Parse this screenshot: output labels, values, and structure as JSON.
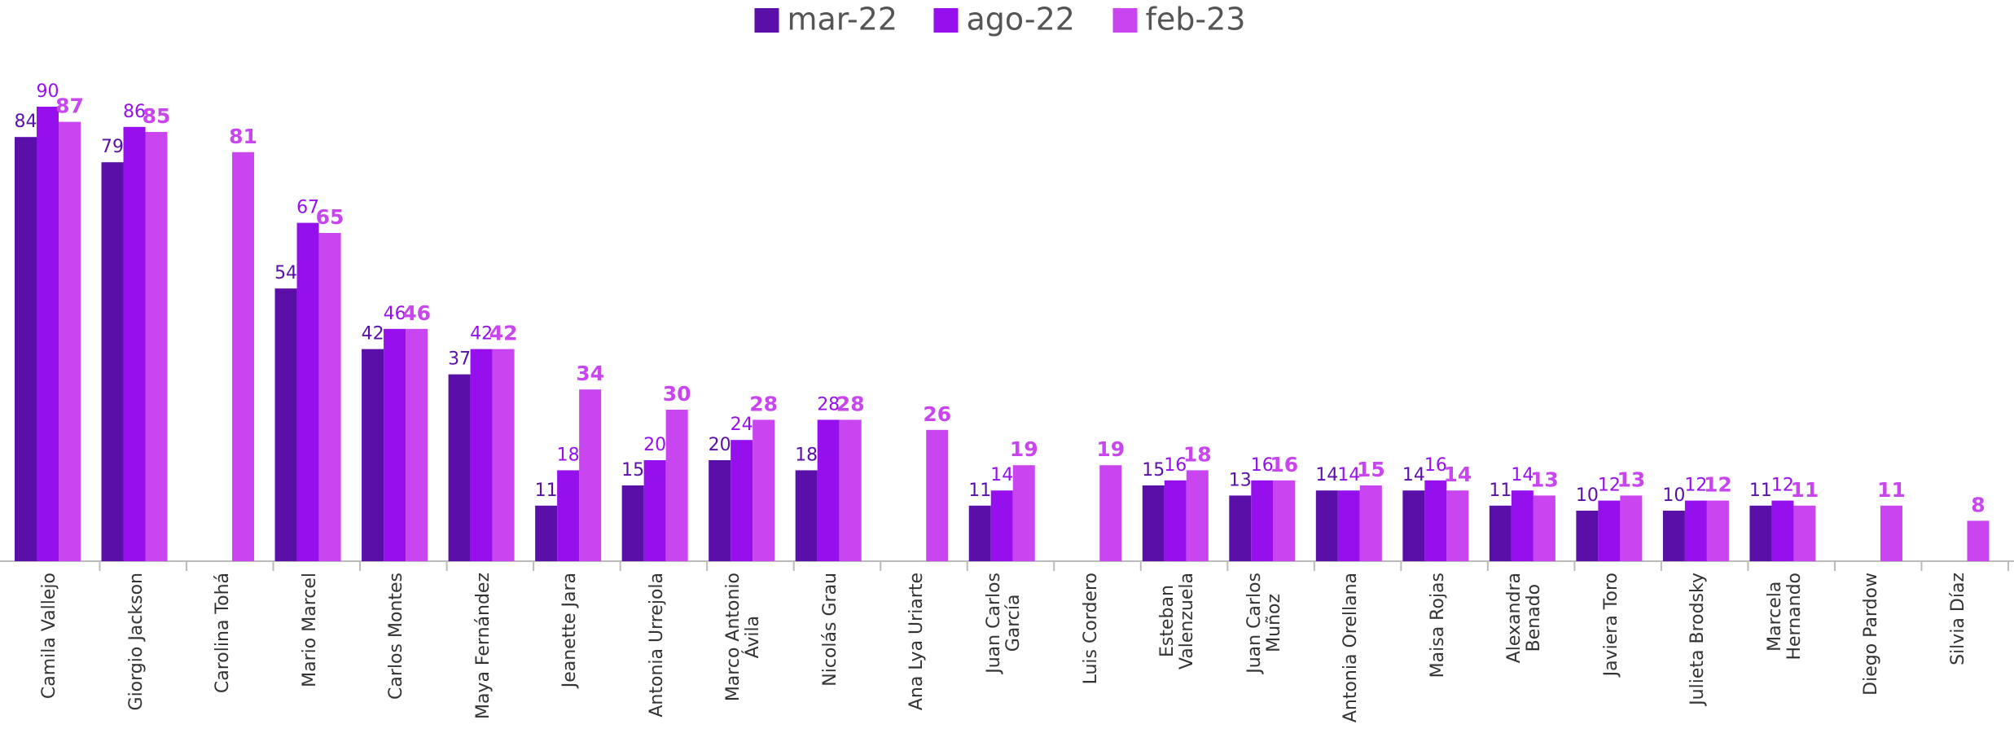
{
  "chart_data": {
    "type": "bar",
    "categories": [
      "Camila Vallejo",
      "Giorgio Jackson",
      "Carolina Tohá",
      "Mario Marcel",
      "Carlos Montes",
      "Maya Fernández",
      "Jeanette Jara",
      "Antonia Urrejola",
      "Marco Antonio\nÁvila",
      "Nicolás Grau",
      "Ana Lya Uriarte",
      "Juan Carlos\nGarcía",
      "Luis Cordero",
      "Esteban\nValenzuela",
      "Juan Carlos\nMuñoz",
      "Antonia Orellana",
      "Maisa Rojas",
      "Alexandra\nBenado",
      "Javiera Toro",
      "Julieta Brodsky",
      "Marcela\nHernando",
      "Diego Pardow",
      "Silvia Díaz"
    ],
    "series": [
      {
        "name": "mar-22",
        "color": "#5a10a8",
        "values": [
          84,
          79,
          null,
          54,
          42,
          37,
          11,
          15,
          20,
          18,
          null,
          11,
          null,
          15,
          13,
          14,
          14,
          11,
          10,
          10,
          11,
          null,
          null
        ]
      },
      {
        "name": "ago-22",
        "color": "#9610ee",
        "values": [
          90,
          86,
          null,
          67,
          46,
          42,
          18,
          20,
          24,
          28,
          null,
          14,
          null,
          16,
          16,
          14,
          16,
          14,
          12,
          12,
          12,
          null,
          null
        ]
      },
      {
        "name": "feb-23",
        "color": "#c845f0",
        "values": [
          87,
          85,
          81,
          65,
          46,
          42,
          34,
          30,
          28,
          28,
          26,
          19,
          19,
          18,
          16,
          15,
          14,
          13,
          13,
          12,
          11,
          11,
          8
        ]
      }
    ],
    "ylim": [
      0,
      90
    ],
    "legend": "top"
  }
}
